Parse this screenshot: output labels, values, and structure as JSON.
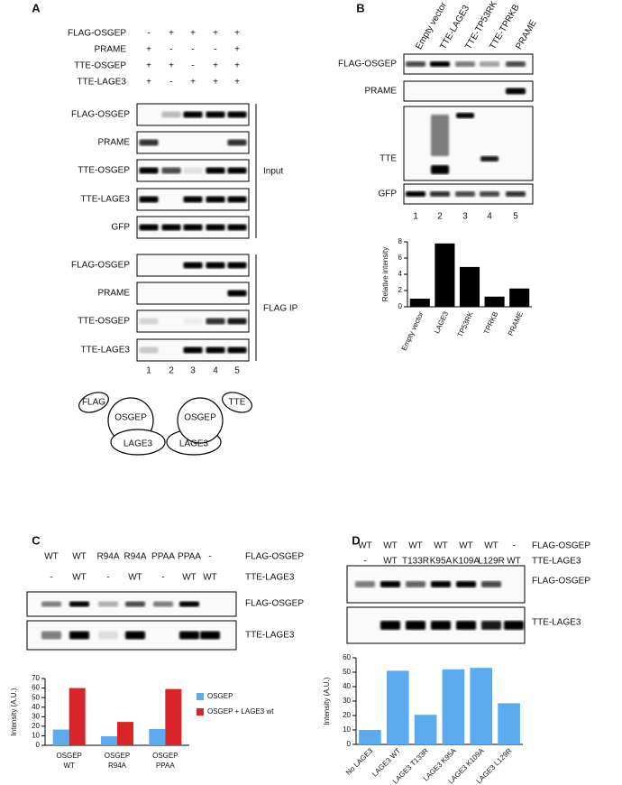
{
  "panels": {
    "A": {
      "label": "A",
      "conditions": [
        {
          "name": "FLAG-OSGEP",
          "signs": [
            "-",
            "+",
            "+",
            "+",
            "+"
          ]
        },
        {
          "name": "PRAME",
          "signs": [
            "+",
            "-",
            "-",
            "-",
            "+"
          ]
        },
        {
          "name": "TTE-OSGEP",
          "signs": [
            "+",
            "+",
            "-",
            "+",
            "+"
          ]
        },
        {
          "name": "TTE-LAGE3",
          "signs": [
            "+",
            "-",
            "+",
            "+",
            "+"
          ]
        }
      ],
      "input_blots": [
        "FLAG-OSGEP",
        "PRAME",
        "TTE-OSGEP",
        "TTE-LAGE3",
        "GFP"
      ],
      "input_label": "Input",
      "ip_blots": [
        "FLAG-OSGEP",
        "PRAME",
        "TTE-OSGEP",
        "TTE-LAGE3"
      ],
      "ip_label": "FLAG IP",
      "lanes": [
        "1",
        "2",
        "3",
        "4",
        "5"
      ],
      "diagram": [
        "FLAG",
        "OSGEP",
        "LAGE3",
        "LAGE3",
        "OSGEP",
        "TTE"
      ]
    },
    "B": {
      "label": "B",
      "columns": [
        "Empty vector",
        "TTE-LAGE3",
        "TTE-TP53RK",
        "TTE-TPRKB",
        "PRAME"
      ],
      "blots": [
        "FLAG-OSGEP",
        "PRAME",
        "TTE",
        "GFP"
      ],
      "lanes": [
        "1",
        "2",
        "3",
        "4",
        "5"
      ]
    },
    "C": {
      "label": "C",
      "conditions": [
        {
          "name": "FLAG-OSGEP",
          "values": [
            "WT",
            "WT",
            "R94A",
            "R94A",
            "PPAA",
            "PPAA",
            "-"
          ]
        },
        {
          "name": "TTE-LAGE3",
          "values": [
            "-",
            "WT",
            "-",
            "WT",
            "-",
            "WT",
            "WT"
          ]
        }
      ],
      "blots": [
        "FLAG-OSGEP",
        "TTE-LAGE3"
      ]
    },
    "D": {
      "label": "D",
      "conditions": [
        {
          "name": "FLAG-OSGEP",
          "values": [
            "WT",
            "WT",
            "WT",
            "WT",
            "WT",
            "WT",
            "-"
          ]
        },
        {
          "name": "TTE-LAGE3",
          "values": [
            "-",
            "WT",
            "T133R",
            "K95A",
            "K109A",
            "L129R",
            "WT"
          ]
        }
      ],
      "blots": [
        "FLAG-OSGEP",
        "TTE-LAGE3"
      ]
    }
  },
  "chart_data": [
    {
      "type": "bar",
      "ylabel": "Relative intensity",
      "categories": [
        "Empty vector",
        "LAGE3",
        "TP53RK",
        "TPRKB",
        "PRAME"
      ],
      "values": [
        1,
        7.8,
        4.9,
        1.25,
        2.25
      ],
      "color": "#000000",
      "ylim": [
        0,
        8
      ],
      "yticks": [
        0,
        2,
        4,
        6,
        8
      ]
    },
    {
      "type": "bar",
      "ylabel": "Intensity (A.U.)",
      "categories": [
        [
          "OSGEP",
          "WT"
        ],
        [
          "OSGEP",
          "R94A"
        ],
        [
          "OSGEP",
          "PPAA"
        ]
      ],
      "series": [
        {
          "name": "OSGEP",
          "color": "#5aabf0",
          "values": [
            16.5,
            9.5,
            17
          ]
        },
        {
          "name": "OSGEP + LAGE3 wt",
          "color": "#d9252a",
          "values": [
            60,
            24.5,
            59
          ]
        }
      ],
      "ylim": [
        0,
        70
      ],
      "yticks": [
        0,
        10,
        20,
        30,
        40,
        50,
        60,
        70
      ],
      "legend": "right"
    },
    {
      "type": "bar",
      "ylabel": "Intensity (A.U.)",
      "categories": [
        "No LAGE3",
        "LAGE3 WT",
        "LAGE3 T133R",
        "LAGE3 K95A",
        "LAGE3 K109A",
        "LAGE3 L129R"
      ],
      "values": [
        10,
        51,
        20.5,
        52,
        53,
        28.5
      ],
      "color": "#5aabf0",
      "ylim": [
        0,
        60
      ],
      "yticks": [
        0,
        10,
        20,
        30,
        40,
        50,
        60
      ]
    }
  ]
}
